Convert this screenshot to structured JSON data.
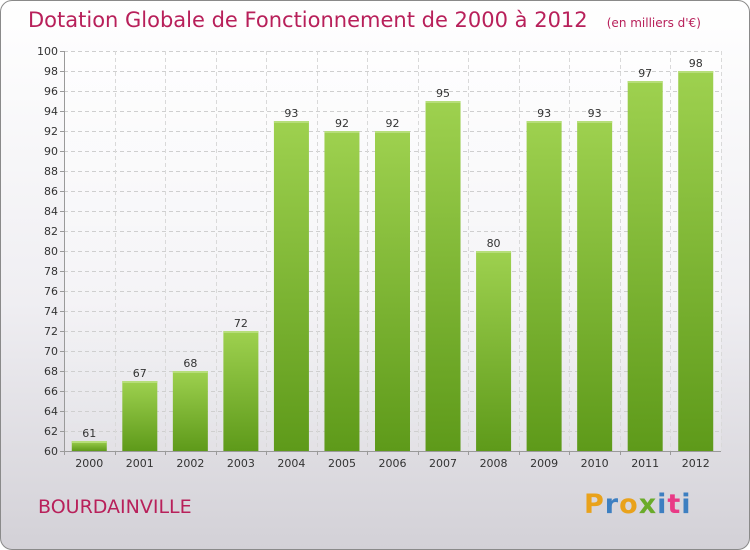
{
  "header": {
    "title": "Dotation Globale de Fonctionnement de 2000 à 2012",
    "subtitle": "(en milliers d'€)"
  },
  "footer": {
    "commune": "BOURDAINVILLE",
    "brand": "Proxiti"
  },
  "colors": {
    "title": "#b8205a",
    "bar_light": "#9ed14f",
    "bar_dark": "#5e9a1a",
    "brand_letters": [
      "#e9a21b",
      "#3d7fc1",
      "#e9a21b",
      "#6aab2a",
      "#3d7fc1",
      "#e93a86",
      "#3d7fc1"
    ]
  },
  "chart_data": {
    "type": "bar",
    "categories": [
      "2000",
      "2001",
      "2002",
      "2003",
      "2004",
      "2005",
      "2006",
      "2007",
      "2008",
      "2009",
      "2010",
      "2011",
      "2012"
    ],
    "values": [
      61,
      67,
      68,
      72,
      93,
      92,
      92,
      95,
      80,
      93,
      93,
      97,
      98
    ],
    "title": "Dotation Globale de Fonctionnement de 2000 à 2012",
    "subtitle": "(en milliers d'€)",
    "xlabel": "",
    "ylabel": "",
    "ylim": [
      60,
      100
    ],
    "ytick_step": 2,
    "grid": true,
    "legend": "none",
    "data_labels": true
  }
}
